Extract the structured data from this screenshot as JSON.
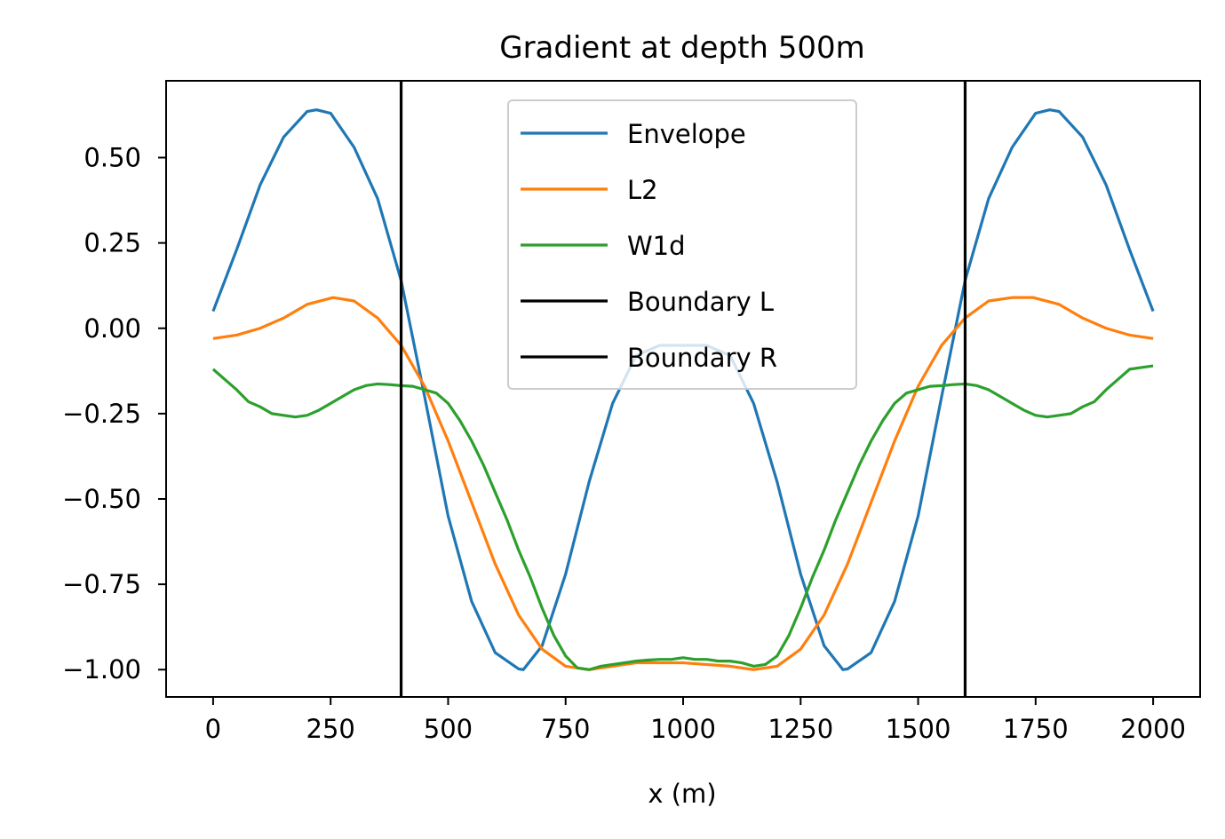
{
  "chart_data": {
    "type": "line",
    "title": "Gradient at depth 500m",
    "xlabel": "x (m)",
    "ylabel": "",
    "xlim": [
      -100,
      2100
    ],
    "ylim": [
      -1.08,
      0.725
    ],
    "xticks": [
      0,
      250,
      500,
      750,
      1000,
      1250,
      1500,
      1750,
      2000
    ],
    "xtick_labels": [
      "0",
      "250",
      "500",
      "750",
      "1000",
      "1250",
      "1500",
      "1750",
      "2000"
    ],
    "yticks": [
      0.5,
      0.25,
      0.0,
      -0.25,
      -0.5,
      -0.75,
      -1.0
    ],
    "ytick_labels": [
      "0.50",
      "0.25",
      "0.00",
      "−0.25",
      "−0.50",
      "−0.75",
      "−1.00"
    ],
    "grid": false,
    "legend_placement": "upper-center",
    "series": [
      {
        "name": "Envelope",
        "color": "#1f77b4",
        "x": [
          0,
          50,
          100,
          150,
          200,
          220,
          250,
          300,
          350,
          400,
          450,
          500,
          550,
          600,
          650,
          660,
          700,
          750,
          800,
          850,
          900,
          950,
          1000,
          1050,
          1100,
          1150,
          1200,
          1250,
          1300,
          1340,
          1350,
          1400,
          1450,
          1500,
          1550,
          1600,
          1650,
          1700,
          1750,
          1780,
          1800,
          1850,
          1900,
          1950,
          2000
        ],
        "y": [
          0.05,
          0.23,
          0.42,
          0.56,
          0.635,
          0.64,
          0.63,
          0.53,
          0.38,
          0.14,
          -0.2,
          -0.55,
          -0.8,
          -0.95,
          -0.998,
          -1.0,
          -0.93,
          -0.72,
          -0.45,
          -0.22,
          -0.08,
          -0.05,
          -0.05,
          -0.05,
          -0.08,
          -0.22,
          -0.45,
          -0.72,
          -0.93,
          -1.0,
          -0.998,
          -0.95,
          -0.8,
          -0.55,
          -0.2,
          0.14,
          0.38,
          0.53,
          0.63,
          0.64,
          0.635,
          0.56,
          0.42,
          0.23,
          0.05
        ]
      },
      {
        "name": "L2",
        "color": "#ff7f0e",
        "x": [
          0,
          50,
          100,
          150,
          200,
          255,
          300,
          350,
          400,
          450,
          500,
          550,
          600,
          650,
          700,
          750,
          800,
          850,
          900,
          1000,
          1100,
          1150,
          1200,
          1250,
          1300,
          1350,
          1400,
          1450,
          1500,
          1550,
          1600,
          1650,
          1700,
          1745,
          1800,
          1850,
          1900,
          1950,
          2000
        ],
        "y": [
          -0.03,
          -0.02,
          0.0,
          0.03,
          0.07,
          0.09,
          0.08,
          0.03,
          -0.05,
          -0.17,
          -0.33,
          -0.51,
          -0.69,
          -0.84,
          -0.94,
          -0.99,
          -1.0,
          -0.99,
          -0.98,
          -0.98,
          -0.99,
          -1.0,
          -0.99,
          -0.94,
          -0.84,
          -0.69,
          -0.51,
          -0.33,
          -0.17,
          -0.05,
          0.03,
          0.08,
          0.09,
          0.09,
          0.07,
          0.03,
          0.0,
          -0.02,
          -0.03
        ]
      },
      {
        "name": "W1d",
        "color": "#2ca02c",
        "x": [
          0,
          25,
          50,
          75,
          100,
          125,
          150,
          175,
          200,
          225,
          250,
          275,
          300,
          325,
          350,
          375,
          400,
          425,
          450,
          475,
          500,
          525,
          550,
          575,
          600,
          625,
          650,
          675,
          700,
          725,
          750,
          775,
          800,
          825,
          850,
          875,
          900,
          925,
          950,
          975,
          1000,
          1025,
          1050,
          1075,
          1100,
          1125,
          1150,
          1175,
          1200,
          1225,
          1250,
          1275,
          1300,
          1325,
          1350,
          1375,
          1400,
          1425,
          1450,
          1475,
          1500,
          1525,
          1550,
          1575,
          1600,
          1625,
          1650,
          1675,
          1700,
          1725,
          1750,
          1775,
          1800,
          1825,
          1850,
          1875,
          1900,
          1925,
          1950,
          1975,
          2000
        ],
        "y": [
          -0.12,
          -0.15,
          -0.18,
          -0.215,
          -0.23,
          -0.25,
          -0.255,
          -0.26,
          -0.255,
          -0.24,
          -0.22,
          -0.2,
          -0.18,
          -0.168,
          -0.163,
          -0.165,
          -0.168,
          -0.17,
          -0.18,
          -0.19,
          -0.22,
          -0.27,
          -0.33,
          -0.4,
          -0.48,
          -0.56,
          -0.65,
          -0.73,
          -0.82,
          -0.9,
          -0.96,
          -0.995,
          -1.0,
          -0.99,
          -0.985,
          -0.98,
          -0.975,
          -0.972,
          -0.97,
          -0.97,
          -0.965,
          -0.97,
          -0.97,
          -0.975,
          -0.975,
          -0.98,
          -0.99,
          -0.985,
          -0.96,
          -0.9,
          -0.82,
          -0.73,
          -0.65,
          -0.56,
          -0.48,
          -0.4,
          -0.33,
          -0.27,
          -0.22,
          -0.19,
          -0.18,
          -0.17,
          -0.168,
          -0.165,
          -0.163,
          -0.168,
          -0.18,
          -0.2,
          -0.22,
          -0.24,
          -0.255,
          -0.26,
          -0.255,
          -0.25,
          -0.23,
          -0.215,
          -0.18,
          -0.15,
          -0.12,
          -0.115,
          -0.11
        ]
      },
      {
        "name": "Boundary L",
        "color": "#000000",
        "x": [
          400,
          400
        ],
        "y": [
          -1.08,
          0.725
        ]
      },
      {
        "name": "Boundary R",
        "color": "#000000",
        "x": [
          1600,
          1600
        ],
        "y": [
          -1.08,
          0.725
        ]
      }
    ]
  }
}
